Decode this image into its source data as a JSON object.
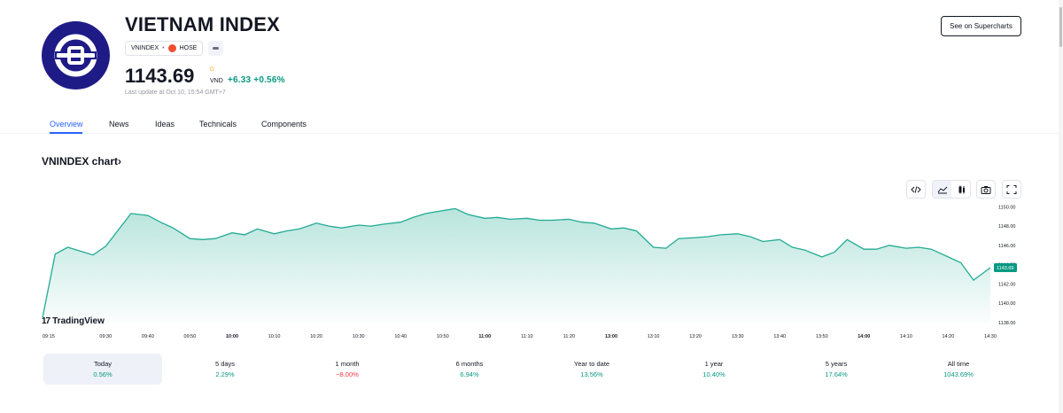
{
  "symbol": {
    "title": "VIETNAM INDEX",
    "ticker": "VNINDEX",
    "separator": "•",
    "exchange": "HOSE",
    "price": "1143.69",
    "price_superscript": "D",
    "currency": "VND",
    "change": "+6.33 +0.56%",
    "last_update": "Last update at Oct 10, 15:54 GMT+7"
  },
  "buttons": {
    "supercharts": "See on Supercharts"
  },
  "tabs": [
    {
      "label": "Overview",
      "active": true
    },
    {
      "label": "News",
      "active": false
    },
    {
      "label": "Ideas",
      "active": false
    },
    {
      "label": "Technicals",
      "active": false
    },
    {
      "label": "Components",
      "active": false
    }
  ],
  "chart_section": {
    "title": "VNINDEX chart",
    "chevron": "›",
    "branding": "TradingView",
    "branding_mark": "17"
  },
  "toolbar": {
    "icons": [
      "embed-code-icon",
      "area-chart-icon",
      "candles-icon",
      "camera-icon",
      "fullscreen-icon"
    ]
  },
  "colors": {
    "accent": "#2962ff",
    "positive": "#089981",
    "negative": "#f23645",
    "logo_bg": "#1f1b86",
    "line": "#22ab94"
  },
  "chart_data": {
    "type": "area",
    "title": "",
    "x": [
      "09:15",
      "09:18",
      "09:21",
      "09:24",
      "09:27",
      "09:30",
      "09:33",
      "09:36",
      "09:40",
      "09:43",
      "09:46",
      "09:50",
      "09:53",
      "09:56",
      "10:00",
      "10:03",
      "10:06",
      "10:10",
      "10:13",
      "10:16",
      "10:20",
      "10:23",
      "10:26",
      "10:30",
      "10:33",
      "10:36",
      "10:40",
      "10:43",
      "10:46",
      "10:50",
      "10:53",
      "10:56",
      "11:00",
      "11:03",
      "11:06",
      "11:10",
      "11:13",
      "11:16",
      "11:20",
      "11:23",
      "11:26",
      "13:00",
      "13:03",
      "13:06",
      "13:10",
      "13:13",
      "13:16",
      "13:20",
      "13:23",
      "13:26",
      "13:30",
      "13:33",
      "13:36",
      "13:40",
      "13:43",
      "13:46",
      "13:50",
      "13:53",
      "13:56",
      "14:00",
      "14:03",
      "14:06",
      "14:10",
      "14:13",
      "14:16",
      "14:20",
      "14:23",
      "14:26",
      "14:30"
    ],
    "values": [
      1138.5,
      1145.1,
      1145.8,
      1145.4,
      1145.0,
      1145.9,
      1147.6,
      1149.3,
      1149.1,
      1148.4,
      1147.8,
      1146.7,
      1146.6,
      1146.7,
      1147.3,
      1147.1,
      1147.7,
      1147.2,
      1147.5,
      1147.7,
      1148.3,
      1148.0,
      1147.8,
      1148.1,
      1148.0,
      1148.2,
      1148.4,
      1148.9,
      1149.3,
      1149.6,
      1149.8,
      1149.2,
      1148.8,
      1148.9,
      1148.7,
      1148.8,
      1148.6,
      1148.6,
      1148.7,
      1148.4,
      1148.3,
      1147.7,
      1147.8,
      1147.5,
      1145.8,
      1145.7,
      1146.7,
      1146.8,
      1146.9,
      1147.1,
      1147.2,
      1146.9,
      1146.4,
      1146.6,
      1145.8,
      1145.5,
      1144.8,
      1145.3,
      1146.6,
      1145.6,
      1145.6,
      1146.0,
      1145.7,
      1145.8,
      1145.6,
      1144.8,
      1144.2,
      1142.4,
      1143.69
    ],
    "x_tick_labels": [
      "09:15",
      "09:30",
      "09:40",
      "09:50",
      "10:00",
      "10:10",
      "10:20",
      "10:30",
      "10:40",
      "10:50",
      "11:00",
      "11:10",
      "11:20",
      "13:00",
      "13:10",
      "13:20",
      "13:30",
      "13:40",
      "13:50",
      "14:00",
      "14:10",
      "14:20",
      "14:30"
    ],
    "bold_ticks": [
      "10:00",
      "11:00",
      "13:00",
      "14:00"
    ],
    "y_tick_labels": [
      "1150.00",
      "1148.00",
      "1146.00",
      "1144.00",
      "1142.00",
      "1140.00",
      "1138.00"
    ],
    "ylim": [
      1138,
      1150.3
    ],
    "last_value_label": "1143.69",
    "grid": false,
    "xlabel": "",
    "ylabel": ""
  },
  "periods": [
    {
      "label": "Today",
      "value": "0.56%",
      "sign": "pos",
      "active": true
    },
    {
      "label": "5 days",
      "value": "2.29%",
      "sign": "pos",
      "active": false
    },
    {
      "label": "1 month",
      "value": "−8.00%",
      "sign": "neg",
      "active": false
    },
    {
      "label": "6 months",
      "value": "6.94%",
      "sign": "pos",
      "active": false
    },
    {
      "label": "Year to date",
      "value": "13.56%",
      "sign": "pos",
      "active": false
    },
    {
      "label": "1 year",
      "value": "10.40%",
      "sign": "pos",
      "active": false
    },
    {
      "label": "5 years",
      "value": "17.64%",
      "sign": "pos",
      "active": false
    },
    {
      "label": "All time",
      "value": "1043.69%",
      "sign": "pos",
      "active": false
    }
  ]
}
